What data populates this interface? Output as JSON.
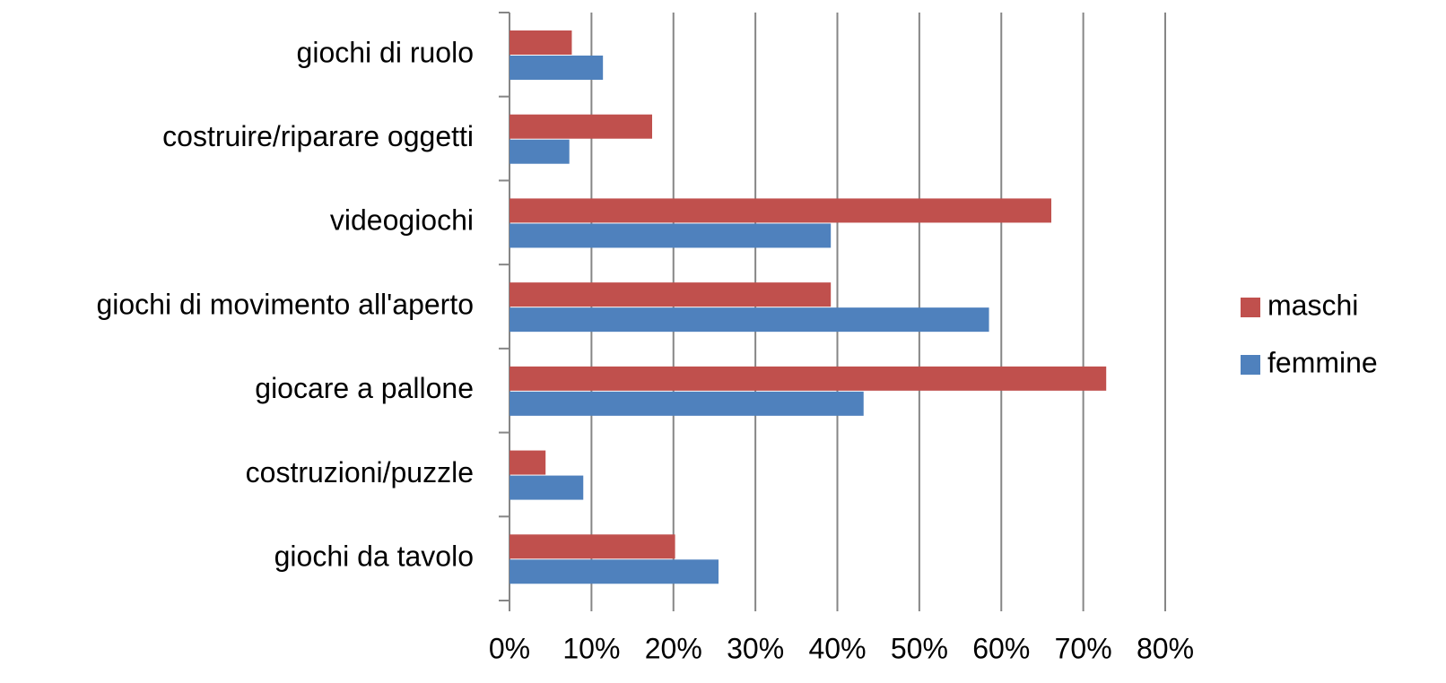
{
  "chart_data": {
    "type": "barh",
    "categories": [
      "giochi di ruolo",
      "costruire/riparare oggetti",
      "videogiochi",
      "giochi di movimento all'aperto",
      "giocare a pallone",
      "costruzioni/puzzle",
      "giochi da tavolo"
    ],
    "series": [
      {
        "name": "maschi",
        "color": "#c0504d",
        "values": [
          7.6,
          17.4,
          66.1,
          39.2,
          72.8,
          4.4,
          20.2
        ]
      },
      {
        "name": "femmine",
        "color": "#4f81bd",
        "values": [
          11.4,
          7.3,
          39.2,
          58.5,
          43.2,
          9.0,
          25.5
        ]
      }
    ],
    "xlim": [
      0,
      80
    ],
    "xticks": [
      {
        "value": 0,
        "label": "0%"
      },
      {
        "value": 10,
        "label": "10%"
      },
      {
        "value": 20,
        "label": "20%"
      },
      {
        "value": 30,
        "label": "30%"
      },
      {
        "value": 40,
        "label": "40%"
      },
      {
        "value": 50,
        "label": "50%"
      },
      {
        "value": 60,
        "label": "60%"
      },
      {
        "value": 70,
        "label": "70%"
      },
      {
        "value": 80,
        "label": "80%"
      }
    ],
    "grid": true,
    "legend": "right"
  }
}
